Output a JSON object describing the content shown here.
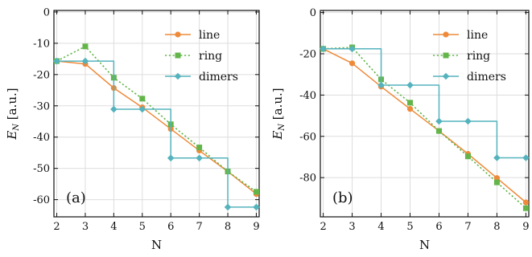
{
  "colors": {
    "line": "#ee8a3a",
    "ring": "#63b54a",
    "dimers": "#55b3bd",
    "grid": "#dddddd",
    "frame": "#111111"
  },
  "chart_data": [
    {
      "type": "line",
      "panel_label": "(a)",
      "xlabel": "N",
      "ylabel_main": "E",
      "ylabel_sub": "N",
      "ylabel_rest": " [a.u.]",
      "x": [
        2,
        3,
        4,
        5,
        6,
        7,
        8,
        9
      ],
      "xlim": [
        1.9,
        9.1
      ],
      "ylim": [
        -65.5,
        0.5
      ],
      "yticks": [
        0,
        -10,
        -20,
        -30,
        -40,
        -50,
        -60
      ],
      "grid": true,
      "legend_position": "top-right",
      "series": [
        {
          "name": "line",
          "style": "solid",
          "marker": "circle",
          "values": [
            -15.7,
            -16.6,
            -24.3,
            -30.5,
            -37.4,
            -44.3,
            -51.0,
            -58.2
          ]
        },
        {
          "name": "ring",
          "style": "dotted",
          "marker": "square",
          "values": [
            -15.7,
            -11.0,
            -21.0,
            -27.7,
            -35.9,
            -43.3,
            -51.0,
            -57.5
          ]
        },
        {
          "name": "dimers",
          "style": "solid",
          "marker": "diamond",
          "step": true,
          "values": [
            -15.7,
            -15.7,
            -31.1,
            -31.1,
            -46.7,
            -46.7,
            -62.4,
            -62.4
          ]
        }
      ]
    },
    {
      "type": "line",
      "panel_label": "(b)",
      "xlabel": "N",
      "ylabel_main": "E",
      "ylabel_sub": "N",
      "ylabel_rest": " [a.u.]",
      "x": [
        2,
        3,
        4,
        5,
        6,
        7,
        8,
        9
      ],
      "xlim": [
        1.9,
        9.1
      ],
      "ylim": [
        -99,
        1
      ],
      "yticks": [
        0,
        -20,
        -40,
        -60,
        -80
      ],
      "grid": true,
      "legend_position": "top-right",
      "series": [
        {
          "name": "line",
          "style": "solid",
          "marker": "circle",
          "values": [
            -17.6,
            -24.6,
            -35.9,
            -46.7,
            -57.4,
            -68.5,
            -80.2,
            -92.0
          ]
        },
        {
          "name": "ring",
          "style": "dotted",
          "marker": "square",
          "values": [
            -17.6,
            -16.9,
            -32.4,
            -43.7,
            -57.4,
            -69.7,
            -82.3,
            -94.8
          ]
        },
        {
          "name": "dimers",
          "style": "solid",
          "marker": "diamond",
          "step": true,
          "values": [
            -17.6,
            -17.6,
            -35.2,
            -35.2,
            -52.7,
            -52.7,
            -70.4,
            -70.4
          ]
        }
      ]
    }
  ]
}
